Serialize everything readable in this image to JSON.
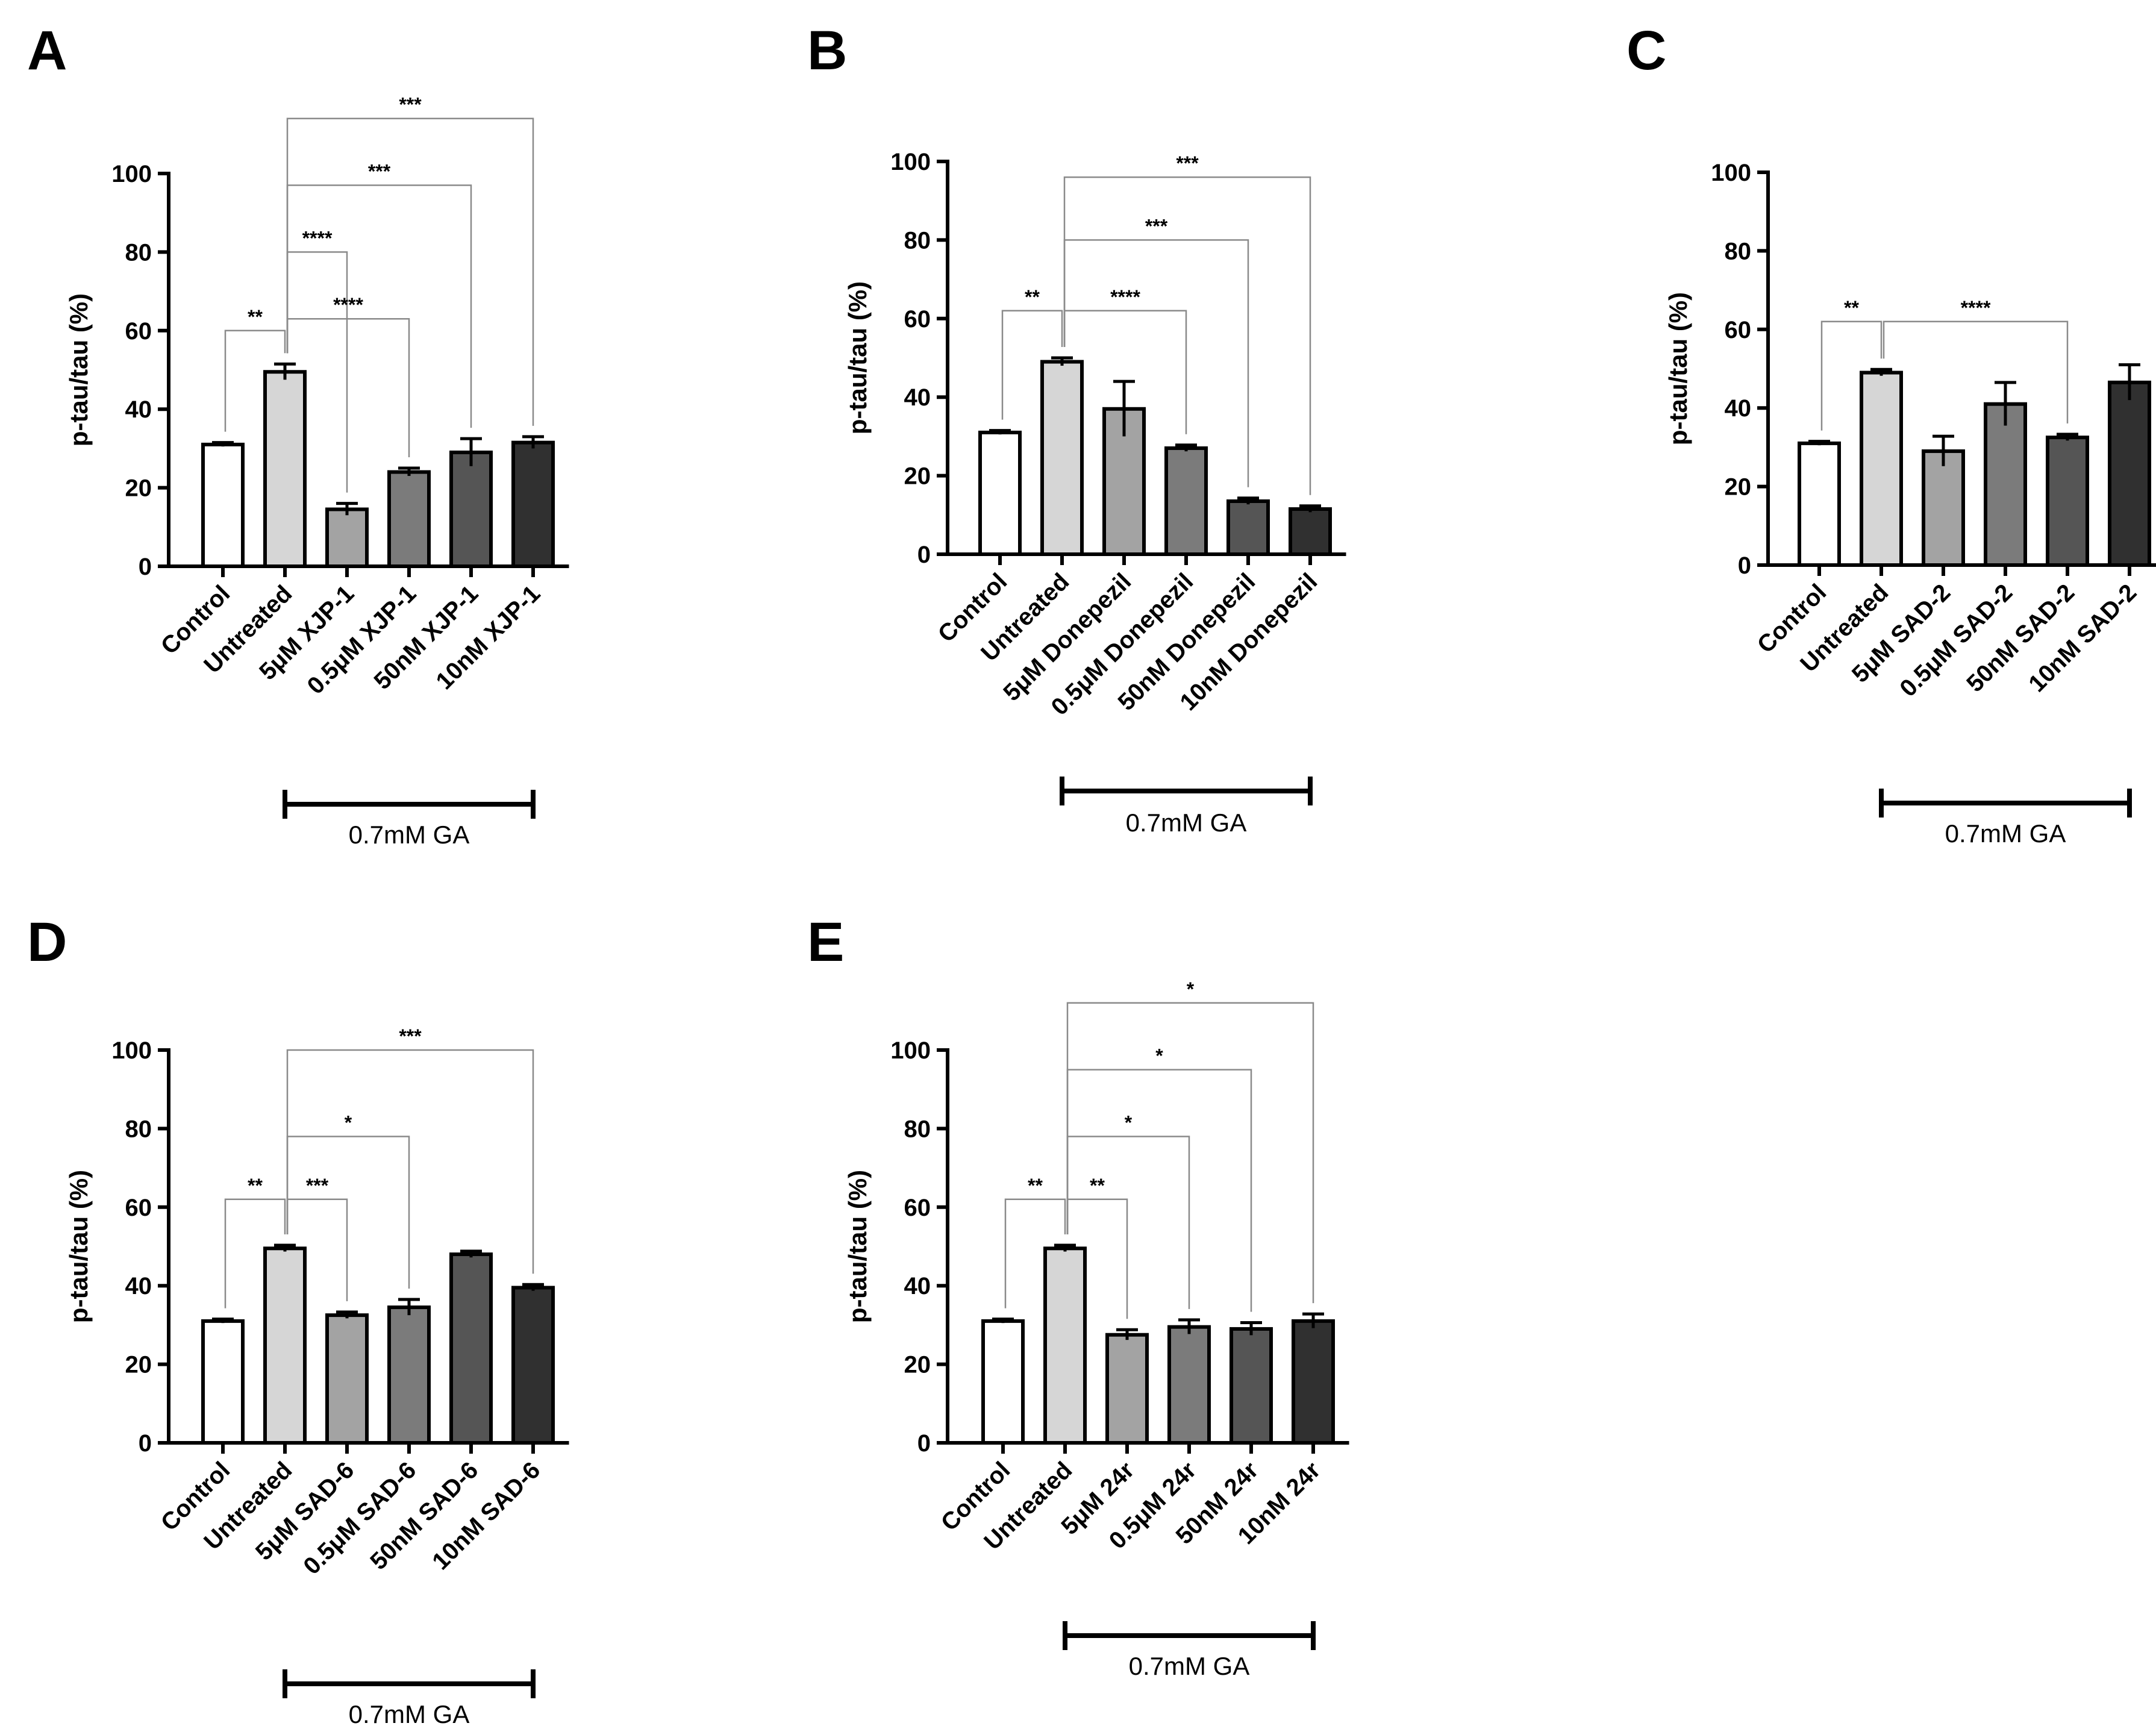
{
  "chart_data": [
    {
      "id": "A",
      "type": "bar",
      "panel_label": "A",
      "ylabel": "p-tau/tau (%)",
      "ylim": [
        0,
        100
      ],
      "yticks": [
        0,
        20,
        40,
        60,
        80,
        100
      ],
      "categories": [
        "Control",
        "Untreated",
        "5μM XJP-1",
        "0.5μM XJP-1",
        "50nM XJP-1",
        "10nM XJP-1"
      ],
      "values": [
        31,
        49.5,
        14.5,
        24,
        29,
        31.5
      ],
      "errors": [
        0.5,
        2,
        1.5,
        1,
        3.5,
        1.5
      ],
      "colors": [
        "#ffffff",
        "#d6d6d6",
        "#a3a3a3",
        "#7b7b7b",
        "#555555",
        "#303030"
      ],
      "group_label": "0.7mM  GA",
      "group_range": [
        1,
        5
      ],
      "significance": [
        {
          "from": 0,
          "to": 1,
          "label": "**",
          "level": 60
        },
        {
          "from": 1,
          "to": 2,
          "label": "****",
          "level": 80
        },
        {
          "from": 1,
          "to": 3,
          "label": "****",
          "level": 63
        },
        {
          "from": 1,
          "to": 4,
          "label": "***",
          "level": 97
        },
        {
          "from": 1,
          "to": 5,
          "label": "***",
          "level": 114
        }
      ]
    },
    {
      "id": "B",
      "type": "bar",
      "panel_label": "B",
      "ylabel": "p-tau/tau (%)",
      "ylim": [
        0,
        100
      ],
      "yticks": [
        0,
        20,
        40,
        60,
        80,
        100
      ],
      "categories": [
        "Control",
        "Untreated",
        "5μM Donepezil",
        "0.5μM Donepezil",
        "50nM Donepezil",
        "10nM Donepezil"
      ],
      "values": [
        31,
        49,
        37,
        27,
        13.5,
        11.5
      ],
      "errors": [
        0.5,
        1,
        7,
        0.8,
        0.8,
        0.8
      ],
      "colors": [
        "#ffffff",
        "#d6d6d6",
        "#a3a3a3",
        "#7b7b7b",
        "#555555",
        "#303030"
      ],
      "group_label": "0.7mM  GA",
      "group_range": [
        1,
        5
      ],
      "significance": [
        {
          "from": 0,
          "to": 1,
          "label": "**",
          "level": 62
        },
        {
          "from": 1,
          "to": 3,
          "label": "****",
          "level": 62
        },
        {
          "from": 1,
          "to": 4,
          "label": "***",
          "level": 80
        },
        {
          "from": 1,
          "to": 5,
          "label": "***",
          "level": 96
        }
      ]
    },
    {
      "id": "C",
      "type": "bar",
      "panel_label": "C",
      "ylabel": "p-tau/tau (%)",
      "ylim": [
        0,
        100
      ],
      "yticks": [
        0,
        20,
        40,
        60,
        80,
        100
      ],
      "categories": [
        "Control",
        "Untreated",
        "5μM SAD-2",
        "0.5μM SAD-2",
        "50nM SAD-2",
        "10nM SAD-2"
      ],
      "values": [
        31,
        49,
        29,
        41,
        32.5,
        46.5
      ],
      "errors": [
        0.5,
        0.8,
        3.8,
        5.5,
        0.8,
        4.5
      ],
      "colors": [
        "#ffffff",
        "#d6d6d6",
        "#a3a3a3",
        "#7b7b7b",
        "#555555",
        "#303030"
      ],
      "group_label": "0.7mM  GA",
      "group_range": [
        1,
        5
      ],
      "significance": [
        {
          "from": 0,
          "to": 1,
          "label": "**",
          "level": 62
        },
        {
          "from": 1,
          "to": 4,
          "label": "****",
          "level": 62
        }
      ]
    },
    {
      "id": "D",
      "type": "bar",
      "panel_label": "D",
      "ylabel": "p-tau/tau (%)",
      "ylim": [
        0,
        100
      ],
      "yticks": [
        0,
        20,
        40,
        60,
        80,
        100
      ],
      "categories": [
        "Control",
        "Untreated",
        "5μM SAD-6",
        "0.5μM SAD-6",
        "50nM SAD-6",
        "10nM SAD-6"
      ],
      "values": [
        31,
        49.5,
        32.5,
        34.5,
        48,
        39.5
      ],
      "errors": [
        0.5,
        0.8,
        0.8,
        2,
        0.8,
        0.8
      ],
      "colors": [
        "#ffffff",
        "#d6d6d6",
        "#a3a3a3",
        "#7b7b7b",
        "#555555",
        "#303030"
      ],
      "group_label": "0.7mM  GA",
      "group_range": [
        1,
        5
      ],
      "significance": [
        {
          "from": 0,
          "to": 1,
          "label": "**",
          "level": 62
        },
        {
          "from": 1,
          "to": 2,
          "label": "***",
          "level": 62
        },
        {
          "from": 1,
          "to": 3,
          "label": "*",
          "level": 78
        },
        {
          "from": 1,
          "to": 5,
          "label": "***",
          "level": 100
        }
      ]
    },
    {
      "id": "E",
      "type": "bar",
      "panel_label": "E",
      "ylabel": "p-tau/tau (%)",
      "ylim": [
        0,
        100
      ],
      "yticks": [
        0,
        20,
        40,
        60,
        80,
        100
      ],
      "categories": [
        "Control",
        "Untreated",
        "5μM 24r",
        "0.5μM 24r",
        "50nM 24r",
        "10nM 24r"
      ],
      "values": [
        31,
        49.5,
        27.5,
        29.5,
        29,
        31
      ],
      "errors": [
        0.5,
        0.8,
        1.3,
        1.8,
        1.6,
        1.8
      ],
      "colors": [
        "#ffffff",
        "#d6d6d6",
        "#a3a3a3",
        "#7b7b7b",
        "#555555",
        "#303030"
      ],
      "group_label": "0.7mM GA",
      "group_range": [
        1,
        5
      ],
      "significance": [
        {
          "from": 0,
          "to": 1,
          "label": "**",
          "level": 62
        },
        {
          "from": 1,
          "to": 2,
          "label": "**",
          "level": 62
        },
        {
          "from": 1,
          "to": 3,
          "label": "*",
          "level": 78
        },
        {
          "from": 1,
          "to": 4,
          "label": "*",
          "level": 95
        },
        {
          "from": 1,
          "to": 5,
          "label": "*",
          "level": 112
        }
      ]
    }
  ]
}
